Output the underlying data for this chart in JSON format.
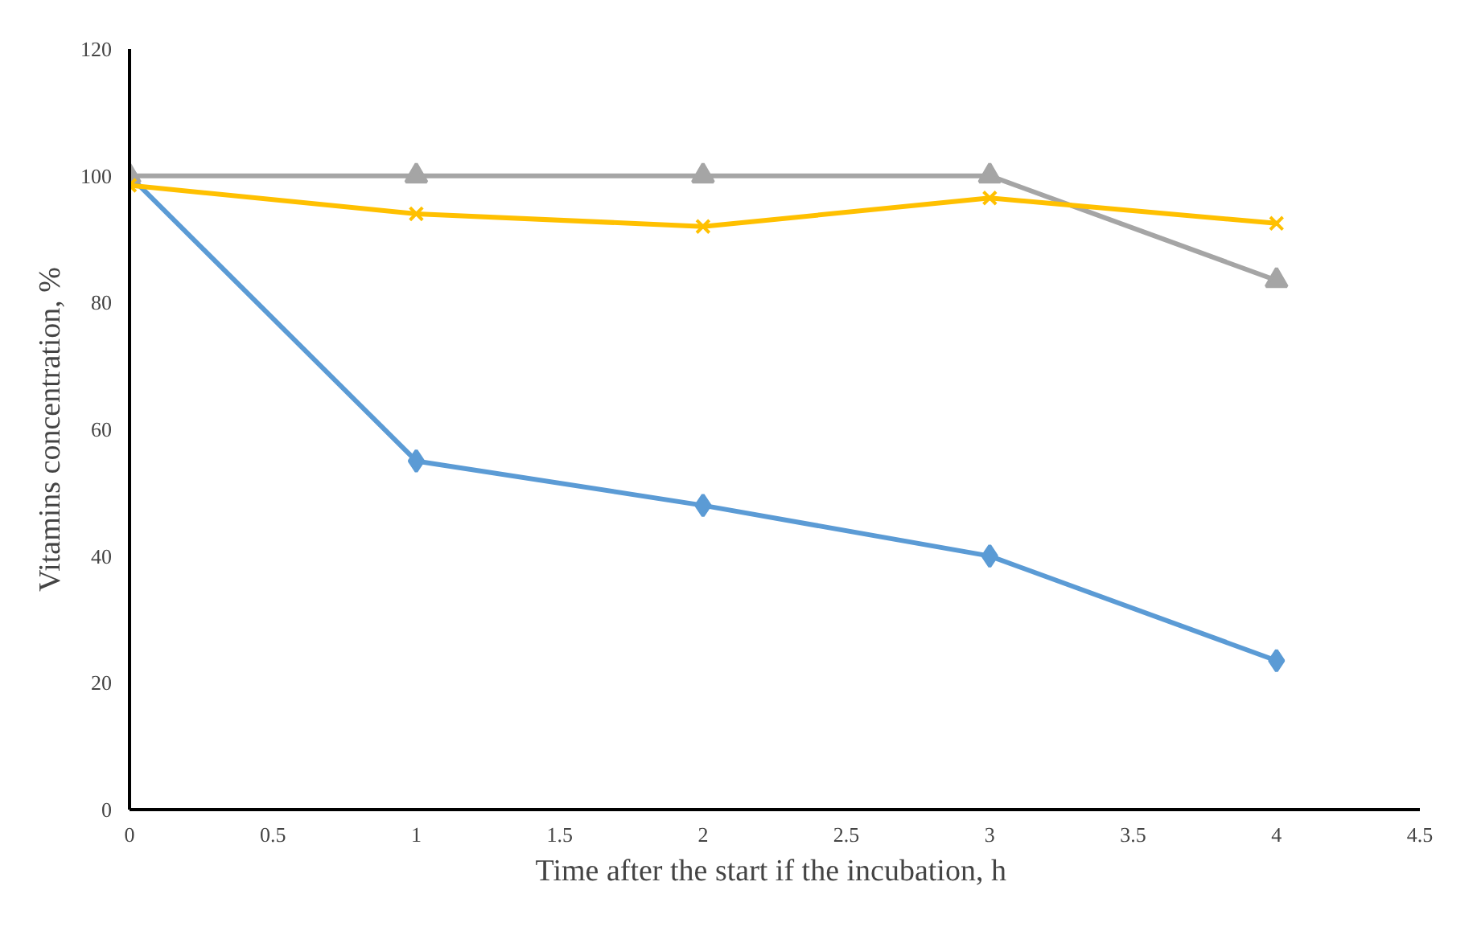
{
  "chart_data": {
    "type": "line",
    "xlabel": "Time  after the start if the incubation, h",
    "ylabel": "Vitamins concentration, %",
    "x": [
      0,
      1,
      2,
      3,
      4
    ],
    "series": [
      {
        "color": "#5b9bd5",
        "values": [
          100,
          55,
          48,
          40,
          23.5
        ],
        "marker": "diamond"
      },
      {
        "color": "#a5a5a5",
        "values": [
          100,
          100,
          100,
          100,
          83.5
        ],
        "marker": "triangle"
      },
      {
        "color": "#ffc000",
        "values": [
          98.5,
          94,
          92,
          96.5,
          92.5
        ],
        "marker": "x"
      }
    ],
    "xlim": [
      0,
      4.5
    ],
    "xticks": [
      0,
      0.5,
      1,
      1.5,
      2,
      2.5,
      3,
      3.5,
      4,
      4.5
    ],
    "ylim": [
      0,
      120
    ],
    "yticks": [
      0,
      20,
      40,
      60,
      80,
      100,
      120
    ],
    "grid": false,
    "line_style": "solid"
  }
}
